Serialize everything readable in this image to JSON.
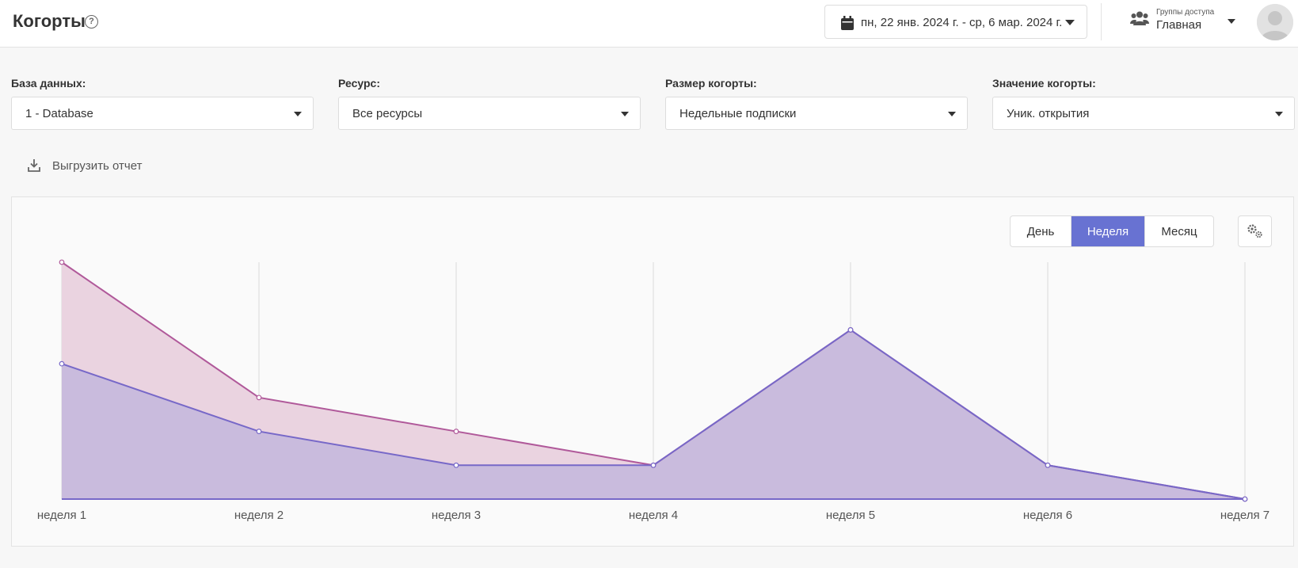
{
  "header": {
    "title": "Когорты",
    "help": "?",
    "date_range": "пн, 22 янв. 2024 г. - ср, 6 мар. 2024 г.",
    "access_label": "Группы доступа",
    "access_value": "Главная"
  },
  "filters": [
    {
      "label": "База данных:",
      "value": "1 - Database"
    },
    {
      "label": "Ресурс:",
      "value": "Все ресурсы"
    },
    {
      "label": "Размер когорты:",
      "value": "Недельные подписки"
    },
    {
      "label": "Значение когорты:",
      "value": "Уник. открытия"
    }
  ],
  "export_label": "Выгрузить отчет",
  "periods": [
    "День",
    "Неделя",
    "Месяц"
  ],
  "active_period": "Неделя",
  "icons": [
    "help-icon",
    "calendar-icon",
    "users-icon",
    "avatar-icon",
    "download-icon",
    "gear-icon"
  ],
  "colors": {
    "accent": "#6872d2",
    "series_a_line": "#b0599a",
    "series_a_fill": "#ead3e0",
    "series_b_line": "#7768c8",
    "series_b_fill": "#c9bbdd"
  },
  "chart_data": {
    "type": "area",
    "categories": [
      "неделя 1",
      "неделя 2",
      "неделя 3",
      "неделя 4",
      "неделя 5",
      "неделя 6",
      "неделя 7"
    ],
    "series": [
      {
        "values": [
          7,
          3,
          2,
          1,
          5,
          1,
          0
        ]
      },
      {
        "values": [
          4,
          2,
          1,
          1,
          5,
          1,
          0
        ]
      }
    ],
    "ylim": [
      0,
      7
    ],
    "grid": "vertical",
    "legend": "none"
  }
}
